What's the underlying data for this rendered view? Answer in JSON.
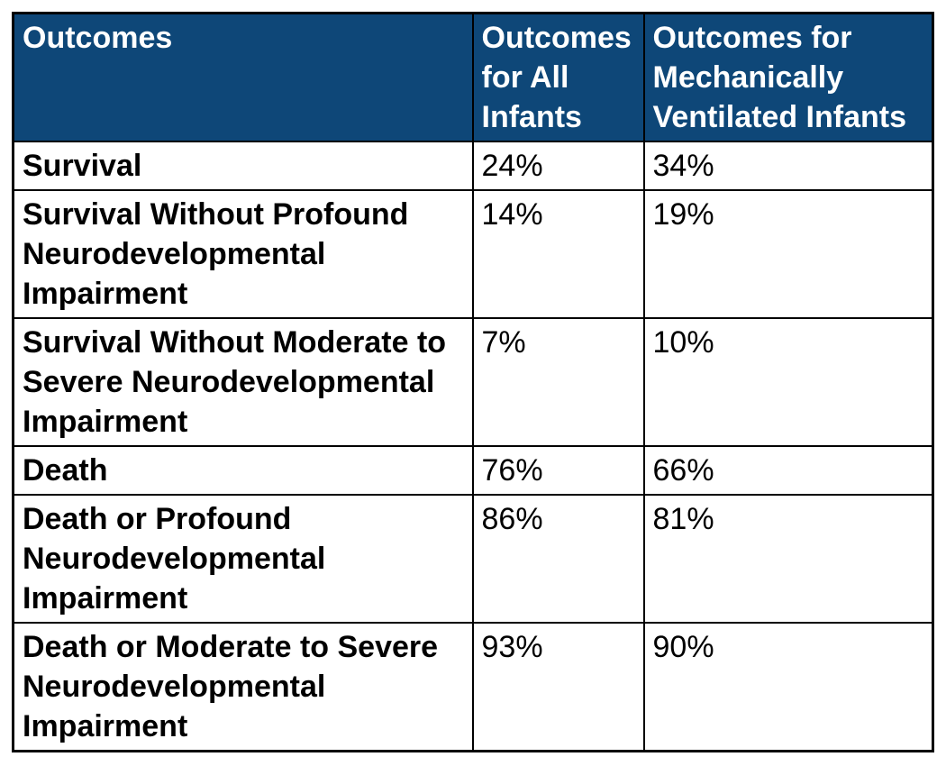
{
  "table": {
    "header": {
      "outcomes": "Outcomes",
      "all_infants": "Outcomes for All Infants",
      "ventilated": "Outcomes for Mechanically Ventilated Infants"
    },
    "rows": [
      {
        "outcome": "Survival",
        "all_infants": "24%",
        "ventilated": "34%"
      },
      {
        "outcome": "Survival Without Profound Neurodevelopmental Impairment",
        "all_infants": "14%",
        "ventilated": "19%"
      },
      {
        "outcome": "Survival Without Moderate to Severe Neurodevelopmental Impairment",
        "all_infants": "7%",
        "ventilated": "10%"
      },
      {
        "outcome": "Death",
        "all_infants": "76%",
        "ventilated": "66%"
      },
      {
        "outcome": "Death or Profound Neurodevelopmental Impairment",
        "all_infants": "86%",
        "ventilated": "81%"
      },
      {
        "outcome": "Death or Moderate to Severe Neurodevelopmental Impairment",
        "all_infants": "93%",
        "ventilated": "90%"
      }
    ],
    "colors": {
      "header_bg": "#0e4778",
      "header_text": "#ffffff",
      "body_text": "#000000",
      "border": "#000000",
      "page_bg": "#ffffff"
    }
  }
}
